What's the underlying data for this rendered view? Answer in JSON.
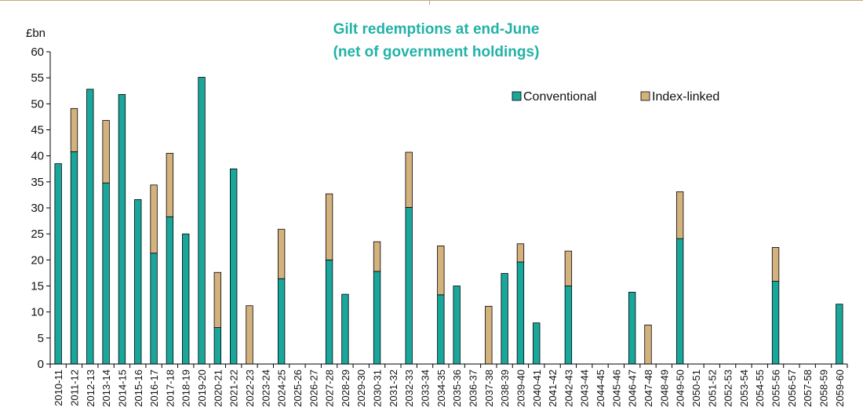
{
  "chart_data": {
    "type": "bar",
    "stacked": true,
    "title": "Gilt redemptions at end-June",
    "subtitle": "(net of government holdings)",
    "ylabel": "£bn",
    "xlabel": "",
    "ylim": [
      0,
      60
    ],
    "yticks": [
      0,
      5,
      10,
      15,
      20,
      25,
      30,
      35,
      40,
      45,
      50,
      55,
      60
    ],
    "grid": false,
    "legend_position": "top-right",
    "categories": [
      "2010-11",
      "2011-12",
      "2012-13",
      "2013-14",
      "2014-15",
      "2015-16",
      "2016-17",
      "2017-18",
      "2018-19",
      "2019-20",
      "2020-21",
      "2021-22",
      "2022-23",
      "2023-24",
      "2024-25",
      "2025-26",
      "2026-27",
      "2027-28",
      "2028-29",
      "2029-30",
      "2030-31",
      "2031-32",
      "2032-33",
      "2033-34",
      "2034-35",
      "2035-36",
      "2036-37",
      "2037-38",
      "2038-39",
      "2039-40",
      "2040-41",
      "2041-42",
      "2042-43",
      "2043-44",
      "2044-45",
      "2045-46",
      "2046-47",
      "2047-48",
      "2048-49",
      "2049-50",
      "2050-51",
      "2051-52",
      "2052-53",
      "2053-54",
      "2054-55",
      "2055-56",
      "2056-57",
      "2057-58",
      "2058-59",
      "2059-60"
    ],
    "series": [
      {
        "name": "Conventional",
        "color": "#1aa79b",
        "values": [
          38.5,
          40.8,
          52.8,
          34.8,
          51.8,
          31.6,
          21.3,
          28.3,
          25.0,
          55.1,
          7.0,
          37.5,
          0,
          0,
          16.4,
          0,
          0,
          20.0,
          13.4,
          0,
          17.8,
          0,
          30.1,
          0,
          13.3,
          15.0,
          0,
          0,
          17.4,
          19.6,
          7.9,
          0,
          15.0,
          0,
          0,
          0,
          13.8,
          0,
          0,
          24.1,
          0,
          0,
          0,
          0,
          0,
          15.9,
          0,
          0,
          0,
          11.5
        ]
      },
      {
        "name": "Index-linked",
        "color": "#d4b27e",
        "values": [
          0,
          8.3,
          0,
          12.0,
          0,
          0,
          13.1,
          12.2,
          0,
          0,
          10.6,
          0,
          11.2,
          0,
          9.5,
          0,
          0,
          12.7,
          0,
          0,
          5.7,
          0,
          10.6,
          0,
          9.4,
          0,
          0,
          11.1,
          0,
          3.5,
          0,
          0,
          6.7,
          0,
          0,
          0,
          0,
          7.5,
          0,
          9.0,
          0,
          0,
          0,
          0,
          0,
          6.5,
          0,
          0,
          0,
          0
        ]
      }
    ]
  }
}
